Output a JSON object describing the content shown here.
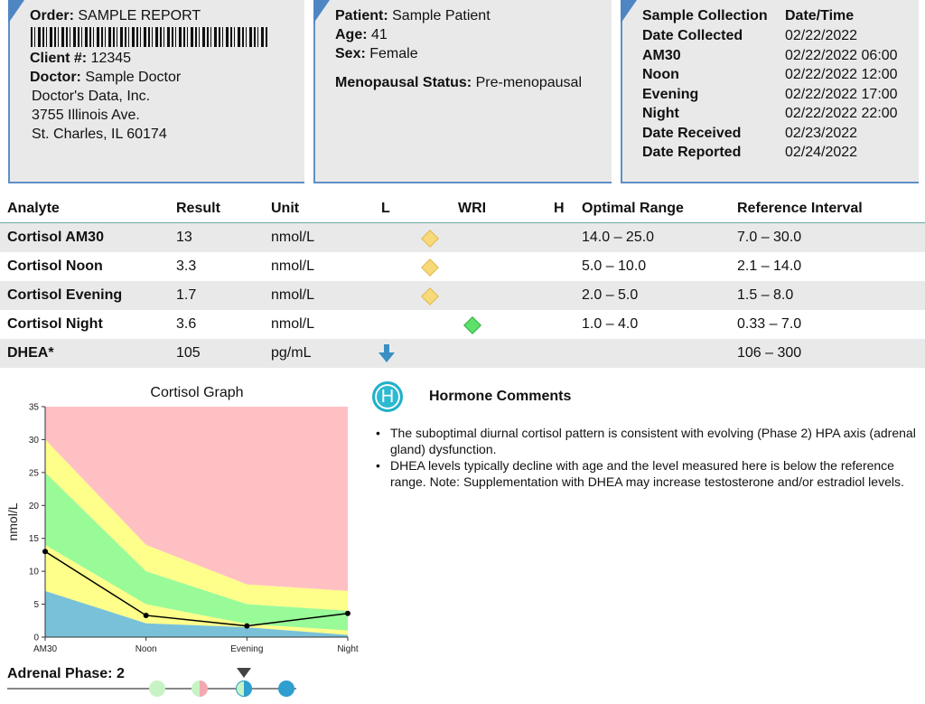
{
  "order_box": {
    "order_label": "Order:",
    "order_value": "SAMPLE REPORT",
    "client_label": "Client #:",
    "client_value": "12345",
    "doctor_label": "Doctor:",
    "doctor_value": "Sample Doctor",
    "lab_name": "Doctor's Data, Inc.",
    "lab_street": "3755 Illinois Ave.",
    "lab_city": "St. Charles, IL 60174"
  },
  "patient_box": {
    "patient_label": "Patient:",
    "patient_value": "Sample Patient",
    "age_label": "Age:",
    "age_value": "41",
    "sex_label": "Sex:",
    "sex_value": "Female",
    "meno_label": "Menopausal Status:",
    "meno_value": "Pre-menopausal"
  },
  "dates_box": {
    "header_left": "Sample Collection",
    "header_right": "Date/Time",
    "rows": [
      {
        "label": "Date Collected",
        "value": "02/22/2022"
      },
      {
        "label": "AM30",
        "value": "02/22/2022 06:00"
      },
      {
        "label": "Noon",
        "value": "02/22/2022 12:00"
      },
      {
        "label": "Evening",
        "value": "02/22/2022 17:00"
      },
      {
        "label": "Night",
        "value": "02/22/2022 22:00"
      },
      {
        "label": "Date Received",
        "value": "02/23/2022"
      },
      {
        "label": "Date Reported",
        "value": "02/24/2022"
      }
    ]
  },
  "results": {
    "headers": {
      "analyte": "Analyte",
      "result": "Result",
      "unit": "Unit",
      "low": "L",
      "wri": "WRI",
      "high": "H",
      "optimal": "Optimal Range",
      "reference": "Reference Interval"
    },
    "rows": [
      {
        "analyte": "Cortisol AM30",
        "result": "13",
        "unit": "nmol/L",
        "flag": "yellow-diamond",
        "optimal": "14.0 – 25.0",
        "reference": "7.0 – 30.0"
      },
      {
        "analyte": "Cortisol Noon",
        "result": "3.3",
        "unit": "nmol/L",
        "flag": "yellow-diamond",
        "optimal": "5.0 – 10.0",
        "reference": "2.1 – 14.0"
      },
      {
        "analyte": "Cortisol Evening",
        "result": "1.7",
        "unit": "nmol/L",
        "flag": "yellow-diamond",
        "optimal": "2.0 – 5.0",
        "reference": "1.5 – 8.0"
      },
      {
        "analyte": "Cortisol Night",
        "result": "3.6",
        "unit": "nmol/L",
        "flag": "green-diamond",
        "optimal": "1.0 – 4.0",
        "reference": "0.33 – 7.0"
      },
      {
        "analyte": "DHEA*",
        "result": "105",
        "unit": "pg/mL",
        "flag": "low-arrow-icon",
        "optimal": "",
        "reference": "106 – 300"
      }
    ],
    "colors": {
      "low_zone": "#f7d97a",
      "optimal_zone": "#5ee16b",
      "arrow": "#3a8fc4"
    }
  },
  "chart_data": {
    "type": "area",
    "title": "Cortisol Graph",
    "ylabel": "nmol/L",
    "xlabel": "",
    "categories": [
      "AM30",
      "Noon",
      "Evening",
      "Night"
    ],
    "ylim": [
      0,
      35
    ],
    "yticks": [
      "0",
      "5",
      "10",
      "15",
      "20",
      "25",
      "30",
      "35"
    ],
    "bands": {
      "below_low": [
        7.0,
        2.1,
        1.5,
        0.33
      ],
      "low_optimal": [
        14.0,
        5.0,
        2.0,
        1.0
      ],
      "high_optimal": [
        25.0,
        10.0,
        5.0,
        4.0
      ],
      "high_reference": [
        30.0,
        14.0,
        8.0,
        7.0
      ]
    },
    "band_colors": {
      "low": "#79c1d9",
      "yellow": "#fefe8a",
      "green": "#98fb98",
      "high": "#ffc0c3"
    },
    "series": [
      {
        "values": [
          13,
          3.3,
          1.7,
          3.6
        ],
        "color": "#000000"
      }
    ]
  },
  "comments": {
    "title": "Hormone Comments",
    "icon_letter": "H",
    "items": [
      "The suboptimal diurnal cortisol pattern is consistent with evolving (Phase 2) HPA axis (adrenal gland) dysfunction.",
      "DHEA levels typically decline with age and the level measured here is below the reference range. Note: Supplementation with DHEA may increase testosterone and/or estradiol levels."
    ]
  },
  "adrenal_phase": {
    "label": "Adrenal Phase:",
    "value": "2",
    "current_phase": 3,
    "circles": [
      {
        "left": "#c8f3c4",
        "right": "#c8f3c4"
      },
      {
        "left": "#c8f3c4",
        "right": "#f2a8b0"
      },
      {
        "left": "#c8f3c4",
        "right": "#2e9fcf"
      },
      {
        "left": "#2e9fcf",
        "right": "#2e9fcf"
      }
    ]
  }
}
